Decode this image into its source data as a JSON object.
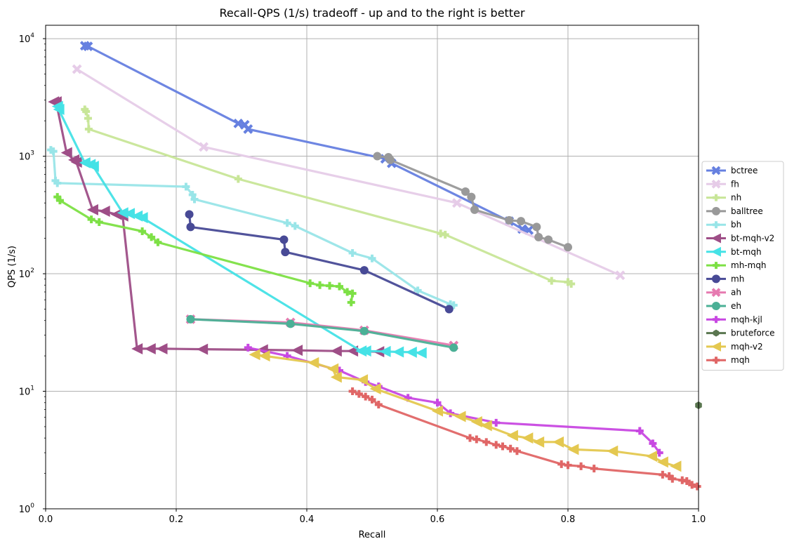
{
  "chart_data": {
    "type": "line",
    "title": "Recall-QPS (1/s) tradeoff - up and to the right is better",
    "xlabel": "Recall",
    "ylabel": "QPS (1/s)",
    "xlim": [
      0,
      1
    ],
    "ylim": [
      1,
      13000
    ],
    "yscale": "log",
    "grid": true,
    "legend_position": "right",
    "x_ticks": [
      "0.0",
      "0.2",
      "0.4",
      "0.6",
      "0.8",
      "1.0"
    ],
    "y_ticks": [
      {
        "base": "10",
        "exp": "0"
      },
      {
        "base": "10",
        "exp": "1"
      },
      {
        "base": "10",
        "exp": "2"
      },
      {
        "base": "10",
        "exp": "3"
      },
      {
        "base": "10",
        "exp": "4"
      }
    ],
    "series": [
      {
        "name": "bctree",
        "color": "#6680e0",
        "marker": "x",
        "points": [
          [
            0.06,
            8700
          ],
          [
            0.065,
            8600
          ],
          [
            0.295,
            1900
          ],
          [
            0.305,
            1850
          ],
          [
            0.31,
            1700
          ],
          [
            0.52,
            950
          ],
          [
            0.53,
            870
          ],
          [
            0.71,
            280
          ],
          [
            0.73,
            240
          ],
          [
            0.74,
            235
          ]
        ]
      },
      {
        "name": "fh",
        "color": "#e6cce8",
        "marker": "x",
        "points": [
          [
            0.048,
            5500
          ],
          [
            0.242,
            1200
          ],
          [
            0.63,
            400
          ],
          [
            0.88,
            97
          ]
        ]
      },
      {
        "name": "nh",
        "color": "#c8e698",
        "marker": "plus",
        "points": [
          [
            0.06,
            2500
          ],
          [
            0.062,
            2400
          ],
          [
            0.065,
            2100
          ],
          [
            0.066,
            1700
          ],
          [
            0.295,
            640
          ],
          [
            0.605,
            220
          ],
          [
            0.612,
            215
          ],
          [
            0.775,
            87
          ],
          [
            0.8,
            85
          ],
          [
            0.805,
            82
          ]
        ]
      },
      {
        "name": "balltree",
        "color": "#999999",
        "marker": "circle",
        "points": [
          [
            0.508,
            1000
          ],
          [
            0.525,
            980
          ],
          [
            0.528,
            930
          ],
          [
            0.643,
            500
          ],
          [
            0.652,
            450
          ],
          [
            0.657,
            350
          ],
          [
            0.71,
            285
          ],
          [
            0.728,
            280
          ],
          [
            0.752,
            250
          ],
          [
            0.755,
            205
          ],
          [
            0.77,
            195
          ],
          [
            0.8,
            168
          ]
        ]
      },
      {
        "name": "bh",
        "color": "#99e5e8",
        "marker": "plus",
        "points": [
          [
            0.008,
            1130
          ],
          [
            0.012,
            1100
          ],
          [
            0.015,
            620
          ],
          [
            0.018,
            590
          ],
          [
            0.215,
            550
          ],
          [
            0.225,
            470
          ],
          [
            0.228,
            430
          ],
          [
            0.37,
            270
          ],
          [
            0.382,
            255
          ],
          [
            0.47,
            150
          ],
          [
            0.5,
            135
          ],
          [
            0.57,
            72
          ],
          [
            0.62,
            55
          ],
          [
            0.625,
            54
          ]
        ]
      },
      {
        "name": "bt-mqh-v2",
        "color": "#9e4e87",
        "marker": "triangle-left",
        "points": [
          [
            0.012,
            2900
          ],
          [
            0.016,
            2900
          ],
          [
            0.032,
            1070
          ],
          [
            0.043,
            930
          ],
          [
            0.047,
            890
          ],
          [
            0.072,
            350
          ],
          [
            0.09,
            340
          ],
          [
            0.108,
            320
          ],
          [
            0.118,
            310
          ],
          [
            0.14,
            23
          ],
          [
            0.16,
            23
          ],
          [
            0.178,
            23
          ],
          [
            0.24,
            22.8
          ],
          [
            0.332,
            22.5
          ],
          [
            0.385,
            22.3
          ],
          [
            0.445,
            22
          ],
          [
            0.47,
            22
          ],
          [
            0.51,
            21.7
          ]
        ]
      },
      {
        "name": "bt-mqh",
        "color": "#45e2e6",
        "marker": "triangle-left",
        "points": [
          [
            0.018,
            2650
          ],
          [
            0.02,
            2500
          ],
          [
            0.06,
            880
          ],
          [
            0.068,
            850
          ],
          [
            0.073,
            820
          ],
          [
            0.118,
            330
          ],
          [
            0.128,
            325
          ],
          [
            0.14,
            310
          ],
          [
            0.148,
            300
          ],
          [
            0.483,
            22
          ],
          [
            0.49,
            22
          ],
          [
            0.52,
            21.8
          ],
          [
            0.54,
            21.6
          ],
          [
            0.56,
            21.5
          ],
          [
            0.575,
            21.2
          ]
        ]
      },
      {
        "name": "mh-mqh",
        "color": "#7de045",
        "marker": "plus",
        "points": [
          [
            0.018,
            450
          ],
          [
            0.022,
            420
          ],
          [
            0.07,
            290
          ],
          [
            0.082,
            275
          ],
          [
            0.148,
            230
          ],
          [
            0.162,
            205
          ],
          [
            0.172,
            185
          ],
          [
            0.405,
            83
          ],
          [
            0.42,
            80
          ],
          [
            0.435,
            79
          ],
          [
            0.45,
            78
          ],
          [
            0.462,
            70
          ],
          [
            0.47,
            68
          ],
          [
            0.468,
            57
          ]
        ]
      },
      {
        "name": "mh",
        "color": "#484a96",
        "marker": "circle",
        "points": [
          [
            0.22,
            320
          ],
          [
            0.222,
            250
          ],
          [
            0.365,
            195
          ],
          [
            0.367,
            153
          ],
          [
            0.488,
            107
          ],
          [
            0.618,
            50
          ]
        ]
      },
      {
        "name": "ah",
        "color": "#e67ab0",
        "marker": "x",
        "points": [
          [
            0.222,
            41
          ],
          [
            0.375,
            38.5
          ],
          [
            0.488,
            33
          ],
          [
            0.625,
            24.5
          ]
        ]
      },
      {
        "name": "eh",
        "color": "#4bb096",
        "marker": "circle",
        "points": [
          [
            0.222,
            41
          ],
          [
            0.375,
            37.5
          ],
          [
            0.488,
            32.5
          ],
          [
            0.625,
            23.5
          ]
        ]
      },
      {
        "name": "mqh-kjl",
        "color": "#c848e2",
        "marker": "plus",
        "points": [
          [
            0.31,
            23.5
          ],
          [
            0.37,
            20
          ],
          [
            0.45,
            15
          ],
          [
            0.49,
            12
          ],
          [
            0.51,
            11
          ],
          [
            0.555,
            8.8
          ],
          [
            0.6,
            8
          ],
          [
            0.62,
            6.5
          ],
          [
            0.69,
            5.4
          ],
          [
            0.91,
            4.6
          ],
          [
            0.93,
            3.6
          ],
          [
            0.94,
            3
          ]
        ]
      },
      {
        "name": "bruteforce",
        "color": "#5a7650",
        "marker": "hexagon",
        "points": [
          [
            1.0,
            7.6
          ]
        ]
      },
      {
        "name": "mqh-v2",
        "color": "#e4c850",
        "marker": "triangle-left",
        "points": [
          [
            0.32,
            20.5
          ],
          [
            0.335,
            20
          ],
          [
            0.41,
            17.5
          ],
          [
            0.44,
            15.5
          ],
          [
            0.445,
            13.2
          ],
          [
            0.485,
            12.5
          ],
          [
            0.505,
            10.5
          ],
          [
            0.6,
            6.8
          ],
          [
            0.635,
            6.1
          ],
          [
            0.66,
            5.5
          ],
          [
            0.675,
            5.1
          ],
          [
            0.715,
            4.2
          ],
          [
            0.738,
            4.0
          ],
          [
            0.755,
            3.7
          ],
          [
            0.785,
            3.7
          ],
          [
            0.808,
            3.2
          ],
          [
            0.868,
            3.1
          ],
          [
            0.928,
            2.8
          ],
          [
            0.945,
            2.5
          ],
          [
            0.965,
            2.3
          ]
        ]
      },
      {
        "name": "mqh",
        "color": "#e06666",
        "marker": "plus",
        "points": [
          [
            0.47,
            10
          ],
          [
            0.48,
            9.5
          ],
          [
            0.49,
            9
          ],
          [
            0.5,
            8.5
          ],
          [
            0.51,
            7.7
          ],
          [
            0.65,
            4
          ],
          [
            0.66,
            3.9
          ],
          [
            0.675,
            3.7
          ],
          [
            0.69,
            3.5
          ],
          [
            0.7,
            3.4
          ],
          [
            0.712,
            3.25
          ],
          [
            0.722,
            3.1
          ],
          [
            0.79,
            2.4
          ],
          [
            0.8,
            2.35
          ],
          [
            0.82,
            2.3
          ],
          [
            0.84,
            2.2
          ],
          [
            0.945,
            1.95
          ],
          [
            0.955,
            1.9
          ],
          [
            0.96,
            1.8
          ],
          [
            0.975,
            1.75
          ],
          [
            0.982,
            1.72
          ],
          [
            0.99,
            1.6
          ],
          [
            0.998,
            1.55
          ]
        ]
      }
    ]
  }
}
